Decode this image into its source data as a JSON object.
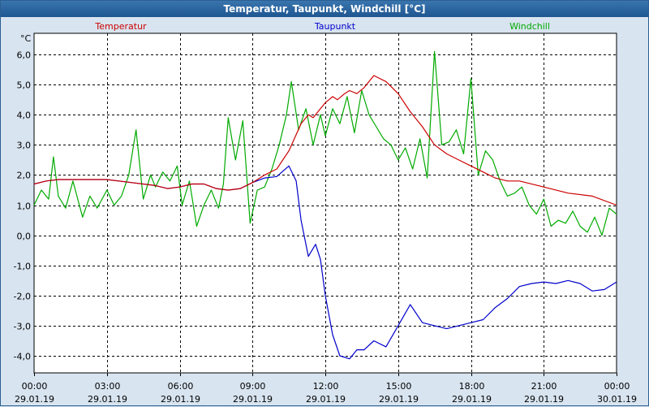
{
  "window": {
    "title": "Temperatur, Taupunkt, Windchill [°C]"
  },
  "colors": {
    "background": "#d8e4f0",
    "plot_background": "#ffffff",
    "title_bar": "#2a5f92",
    "grid": "#000000",
    "temperatur": "#cc0000",
    "taupunkt": "#0000cc",
    "windchill": "#00aa00"
  },
  "chart_data": {
    "type": "line",
    "title": "Temperatur, Taupunkt, Windchill [°C]",
    "ylabel": "°C",
    "ylim": [
      -4.5,
      6.5
    ],
    "y_ticks": [
      -4,
      -3,
      -2,
      -1,
      0,
      1,
      2,
      3,
      4,
      5,
      6
    ],
    "y_tick_labels": [
      "-4,0",
      "-3,0",
      "-2,0",
      "-1,0",
      "0,0",
      "1,0",
      "2,0",
      "3,0",
      "4,0",
      "5,0",
      "6,0"
    ],
    "xlim": [
      0,
      24
    ],
    "x_ticks": [
      0,
      3,
      6,
      9,
      12,
      15,
      18,
      21,
      24
    ],
    "x_tick_times": [
      "00:00",
      "03:00",
      "06:00",
      "09:00",
      "12:00",
      "15:00",
      "18:00",
      "21:00",
      "00:00"
    ],
    "x_tick_dates": [
      "29.01.19",
      "29.01.19",
      "29.01.19",
      "29.01.19",
      "29.01.19",
      "29.01.19",
      "29.01.19",
      "29.01.19",
      "30.01.19"
    ],
    "grid": true,
    "legend": [
      "Temperatur",
      "Taupunkt",
      "Windchill"
    ],
    "series": [
      {
        "name": "Temperatur",
        "color": "#cc0000",
        "x": [
          0,
          0.5,
          1,
          1.5,
          2,
          3,
          4,
          5,
          5.5,
          6,
          6.5,
          7,
          7.5,
          8,
          8.5,
          9,
          9.5,
          10,
          10.5,
          11,
          11.3,
          11.5,
          11.8,
          12,
          12.3,
          12.5,
          12.8,
          13,
          13.3,
          13.6,
          14,
          14.5,
          15,
          15.5,
          16,
          16.5,
          17,
          17.5,
          18,
          18.5,
          19,
          19.5,
          20,
          21,
          22,
          23,
          24
        ],
        "values": [
          1.7,
          1.8,
          1.85,
          1.85,
          1.85,
          1.85,
          1.75,
          1.65,
          1.55,
          1.6,
          1.7,
          1.7,
          1.55,
          1.5,
          1.55,
          1.75,
          2.0,
          2.2,
          2.8,
          3.7,
          4.0,
          3.9,
          4.2,
          4.4,
          4.6,
          4.5,
          4.7,
          4.8,
          4.7,
          4.9,
          5.3,
          5.1,
          4.7,
          4.1,
          3.6,
          3.0,
          2.7,
          2.5,
          2.3,
          2.1,
          1.9,
          1.8,
          1.8,
          1.6,
          1.4,
          1.3,
          1.0
        ]
      },
      {
        "name": "Taupunkt",
        "color": "#0000cc",
        "x": [
          0,
          0.5,
          1,
          1.5,
          2,
          3,
          4,
          5,
          5.5,
          6,
          6.5,
          7,
          7.5,
          8,
          8.5,
          9,
          9.5,
          10,
          10.5,
          10.8,
          11,
          11.3,
          11.6,
          11.8,
          12,
          12.3,
          12.6,
          13,
          13.3,
          13.6,
          14,
          14.5,
          15,
          15.5,
          16,
          16.5,
          17,
          17.5,
          18,
          18.5,
          19,
          19.5,
          20,
          20.5,
          21,
          21.5,
          22,
          22.5,
          23,
          23.5,
          24
        ],
        "values": [
          1.7,
          1.8,
          1.85,
          1.85,
          1.85,
          1.85,
          1.75,
          1.65,
          1.55,
          1.6,
          1.7,
          1.7,
          1.55,
          1.5,
          1.55,
          1.75,
          1.9,
          1.95,
          2.3,
          1.8,
          0.5,
          -0.7,
          -0.3,
          -0.8,
          -2.0,
          -3.3,
          -4.0,
          -4.1,
          -3.8,
          -3.8,
          -3.5,
          -3.7,
          -3.0,
          -2.3,
          -2.9,
          -3.0,
          -3.1,
          -3.0,
          -2.9,
          -2.8,
          -2.4,
          -2.1,
          -1.7,
          -1.6,
          -1.55,
          -1.6,
          -1.5,
          -1.6,
          -1.85,
          -1.8,
          -1.55
        ]
      },
      {
        "name": "Windchill",
        "color": "#00aa00",
        "x": [
          0,
          0.3,
          0.6,
          0.8,
          1,
          1.3,
          1.6,
          2,
          2.3,
          2.6,
          3,
          3.3,
          3.6,
          3.9,
          4.2,
          4.5,
          4.8,
          5,
          5.3,
          5.6,
          5.9,
          6.1,
          6.4,
          6.7,
          7,
          7.3,
          7.6,
          7.8,
          8,
          8.3,
          8.6,
          8.9,
          9.2,
          9.5,
          9.8,
          10.1,
          10.4,
          10.6,
          10.9,
          11.2,
          11.5,
          11.8,
          12,
          12.3,
          12.6,
          12.9,
          13.2,
          13.5,
          13.8,
          14.1,
          14.4,
          14.7,
          15,
          15.3,
          15.6,
          15.9,
          16.2,
          16.5,
          16.8,
          17.1,
          17.4,
          17.7,
          18,
          18.3,
          18.6,
          18.9,
          19.2,
          19.5,
          19.8,
          20.1,
          20.4,
          20.7,
          21,
          21.3,
          21.6,
          21.9,
          22.2,
          22.5,
          22.8,
          23.1,
          23.4,
          23.7,
          24
        ],
        "values": [
          1.0,
          1.5,
          1.2,
          2.6,
          1.3,
          0.9,
          1.8,
          0.6,
          1.3,
          0.9,
          1.5,
          1.0,
          1.3,
          2.0,
          3.5,
          1.2,
          2.0,
          1.6,
          2.1,
          1.8,
          2.3,
          1.0,
          1.8,
          0.3,
          1.0,
          1.5,
          0.9,
          1.7,
          3.9,
          2.5,
          3.8,
          0.4,
          1.5,
          1.6,
          2.2,
          3.0,
          4.0,
          5.1,
          3.5,
          4.2,
          3.0,
          4.0,
          3.3,
          4.2,
          3.7,
          4.6,
          3.4,
          4.8,
          4.0,
          3.6,
          3.2,
          3.0,
          2.5,
          2.9,
          2.2,
          3.2,
          1.9,
          6.1,
          3.0,
          3.1,
          3.5,
          2.7,
          5.2,
          2.0,
          2.8,
          2.5,
          1.8,
          1.3,
          1.4,
          1.6,
          1.0,
          0.7,
          1.2,
          0.3,
          0.5,
          0.4,
          0.8,
          0.3,
          0.1,
          0.6,
          0.0,
          0.9,
          0.7
        ]
      }
    ]
  }
}
